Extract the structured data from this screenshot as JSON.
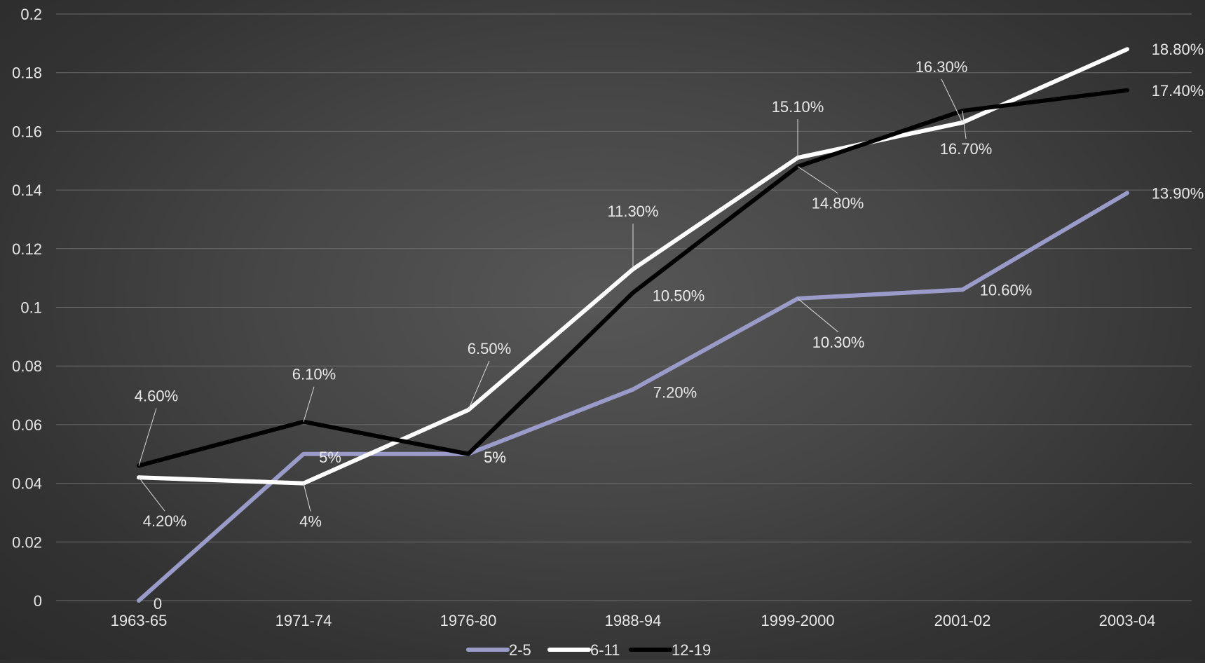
{
  "chart_data": {
    "type": "line",
    "categories": [
      "1963-65",
      "1971-74",
      "1976-80",
      "1988-94",
      "1999-2000",
      "2001-02",
      "2003-04"
    ],
    "ylim": [
      0,
      0.2
    ],
    "yticks": [
      "0",
      "0.02",
      "0.04",
      "0.06",
      "0.08",
      "0.1",
      "0.12",
      "0.14",
      "0.16",
      "0.18",
      "0.2"
    ],
    "grid": true,
    "legend_position": "bottom",
    "series": [
      {
        "name": "2-5",
        "color": "#9b9bc9",
        "values": [
          0,
          0.05,
          0.05,
          0.072,
          0.103,
          0.106,
          0.139
        ],
        "labels": [
          "0",
          "5%",
          "5%",
          "7.20%",
          "10.30%",
          "10.60%",
          "13.90%"
        ]
      },
      {
        "name": "6-11",
        "color": "#ffffff",
        "values": [
          0.042,
          0.04,
          0.065,
          0.113,
          0.151,
          0.163,
          0.188
        ],
        "labels": [
          "4.20%",
          "4%",
          "6.50%",
          "11.30%",
          "15.10%",
          "16.30%",
          "18.80%"
        ]
      },
      {
        "name": "12-19",
        "color": "#000000",
        "values": [
          0.046,
          0.061,
          0.05,
          0.105,
          0.148,
          0.167,
          0.174
        ],
        "labels": [
          "4.60%",
          "6.10%",
          "5%",
          "10.50%",
          "14.80%",
          "16.70%",
          "17.40%"
        ]
      }
    ]
  }
}
